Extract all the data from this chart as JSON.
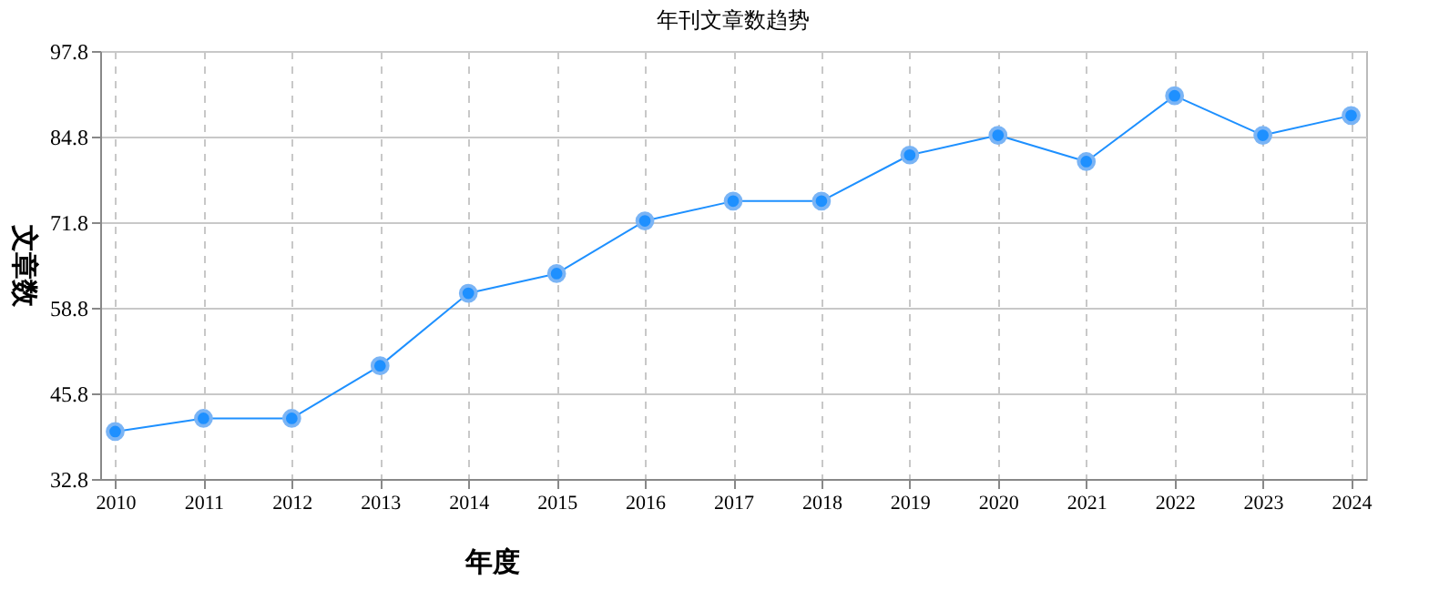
{
  "chart_data": {
    "type": "line",
    "title": "年刊文章数趋势",
    "xlabel": "年度",
    "ylabel": "文章数",
    "categories": [
      "2010",
      "2011",
      "2012",
      "2013",
      "2014",
      "2015",
      "2016",
      "2017",
      "2018",
      "2019",
      "2020",
      "2021",
      "2022",
      "2023",
      "2024"
    ],
    "series": [
      {
        "color": "#1e90ff",
        "values": [
          40,
          42,
          42,
          50,
          61,
          64,
          72,
          75,
          75,
          82,
          85,
          81,
          91,
          85,
          88
        ]
      }
    ],
    "ylim": [
      32.8,
      97.8
    ],
    "yticks": [
      32.8,
      45.8,
      58.8,
      71.8,
      84.8,
      97.8
    ],
    "grid": true,
    "marker": "circle",
    "line_style": "solid"
  }
}
